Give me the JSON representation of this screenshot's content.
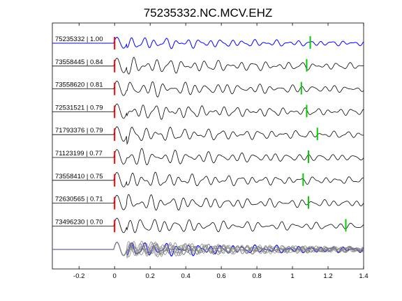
{
  "chart_data": {
    "type": "line",
    "title": "75235332.NC.MCV.EHZ",
    "xlabel": "",
    "ylabel": "",
    "xlim": [
      -0.35,
      1.4
    ],
    "x_ticks": [
      -0.2,
      0,
      0.2,
      0.4,
      0.6,
      0.8,
      1,
      1.2,
      1.4
    ],
    "x_tick_labels": [
      "-0.2",
      "0",
      "0.2",
      "0.4",
      "0.6",
      "0.8",
      "1",
      "1.2",
      "1.4"
    ],
    "grid": false,
    "colors": {
      "reference_trace": "#0000ff",
      "trace": "#000000",
      "stack_trace": "#808080",
      "p_pick": "#ff0000",
      "s_pick": "#00cc00"
    },
    "series": [
      {
        "name": "75235332",
        "cc": 1.0,
        "label": "75235332 | 1.00",
        "p_pick": 0.0,
        "s_pick": 1.1,
        "reference": true
      },
      {
        "name": "73558445",
        "cc": 0.84,
        "label": "73558445 | 0.84",
        "p_pick": 0.0,
        "s_pick": 1.08
      },
      {
        "name": "73558620",
        "cc": 0.81,
        "label": "73558620 | 0.81",
        "p_pick": 0.0,
        "s_pick": 1.05
      },
      {
        "name": "72531521",
        "cc": 0.79,
        "label": "72531521 | 0.79",
        "p_pick": 0.0,
        "s_pick": 1.08
      },
      {
        "name": "71793376",
        "cc": 0.79,
        "label": "71793376 | 0.79",
        "p_pick": 0.0,
        "s_pick": 1.14
      },
      {
        "name": "71123199",
        "cc": 0.77,
        "label": "71123199 | 0.77",
        "p_pick": 0.0,
        "s_pick": 1.09
      },
      {
        "name": "73558410",
        "cc": 0.75,
        "label": "73558410 | 0.75",
        "p_pick": 0.0,
        "s_pick": 1.06
      },
      {
        "name": "72630565",
        "cc": 0.71,
        "label": "72630565 | 0.71",
        "p_pick": 0.0,
        "s_pick": 1.09
      },
      {
        "name": "73496230",
        "cc": 0.7,
        "label": "73496230 | 0.70",
        "p_pick": 0.0,
        "s_pick": 1.3
      }
    ],
    "stack": {
      "traces": 9
    }
  }
}
